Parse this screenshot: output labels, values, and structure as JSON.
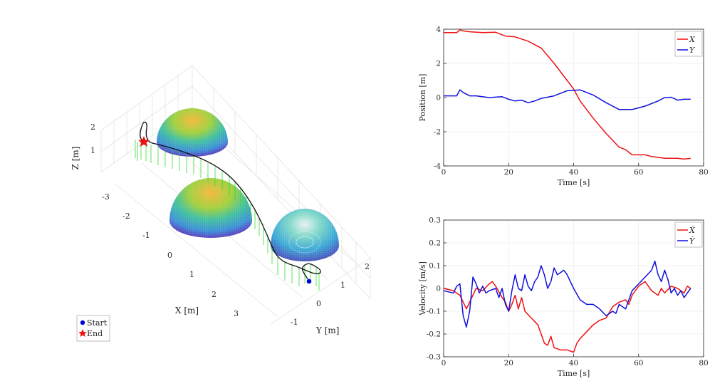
{
  "figure": {
    "legend3d": {
      "items": [
        "Start",
        "End"
      ]
    }
  },
  "chart_data": [
    {
      "type": "3d-scatter-surface",
      "xlabel": "X [m]",
      "ylabel": "Y [m]",
      "zlabel": "Z [m]",
      "x_ticks": [
        "-3",
        "-2",
        "-1",
        "0",
        "1",
        "2",
        "3"
      ],
      "y_ticks": [
        "-1",
        "0",
        "1",
        "2"
      ],
      "z_ticks": [
        "1",
        "2"
      ],
      "legend": [
        "Start",
        "End"
      ],
      "legend_position": "bottom-left",
      "obstacles": [
        {
          "shape": "hemisphere",
          "center_x": -1.0,
          "center_y": 1.5
        },
        {
          "shape": "hemisphere",
          "center_x": 0.0,
          "center_y": -0.5
        },
        {
          "shape": "hemisphere",
          "center_x": 2.0,
          "center_y": 1.0
        }
      ],
      "start": {
        "x": 3.8,
        "y": 0.1,
        "z": 0.6
      },
      "end": {
        "x": -3.5,
        "y": -0.1,
        "z": 1.2
      }
    },
    {
      "type": "line",
      "xlabel": "Time [s]",
      "ylabel": "Position [m]",
      "xlim": [
        0,
        80
      ],
      "ylim": [
        -4,
        4
      ],
      "x_ticks": [
        0,
        20,
        40,
        60,
        80
      ],
      "y_ticks": [
        -4,
        -2,
        0,
        2,
        4
      ],
      "legend_position": "top-right",
      "series": [
        {
          "name": "X",
          "color": "#ee1111",
          "points": [
            [
              0,
              3.8
            ],
            [
              4,
              3.8
            ],
            [
              5,
              3.97
            ],
            [
              6,
              3.9
            ],
            [
              8,
              3.85
            ],
            [
              12,
              3.8
            ],
            [
              16,
              3.82
            ],
            [
              19,
              3.6
            ],
            [
              22,
              3.55
            ],
            [
              26,
              3.3
            ],
            [
              30,
              2.9
            ],
            [
              34,
              2.0
            ],
            [
              38,
              1.0
            ],
            [
              40,
              0.5
            ],
            [
              42,
              -0.2
            ],
            [
              46,
              -1.2
            ],
            [
              50,
              -2.1
            ],
            [
              54,
              -2.9
            ],
            [
              56,
              -3.05
            ],
            [
              58,
              -3.35
            ],
            [
              62,
              -3.35
            ],
            [
              64,
              -3.45
            ],
            [
              68,
              -3.55
            ],
            [
              72,
              -3.55
            ],
            [
              74,
              -3.6
            ],
            [
              76,
              -3.55
            ]
          ]
        },
        {
          "name": "Y",
          "color": "#1111dd",
          "points": [
            [
              0,
              0.1
            ],
            [
              4,
              0.1
            ],
            [
              5,
              0.45
            ],
            [
              6,
              0.3
            ],
            [
              8,
              0.1
            ],
            [
              10,
              0.1
            ],
            [
              14,
              0.0
            ],
            [
              18,
              0.05
            ],
            [
              20,
              -0.1
            ],
            [
              22,
              -0.2
            ],
            [
              24,
              -0.15
            ],
            [
              26,
              -0.3
            ],
            [
              28,
              -0.2
            ],
            [
              30,
              -0.05
            ],
            [
              34,
              0.1
            ],
            [
              38,
              0.4
            ],
            [
              42,
              0.45
            ],
            [
              46,
              0.15
            ],
            [
              50,
              -0.3
            ],
            [
              54,
              -0.7
            ],
            [
              58,
              -0.7
            ],
            [
              62,
              -0.5
            ],
            [
              66,
              -0.2
            ],
            [
              68,
              0.0
            ],
            [
              70,
              0.02
            ],
            [
              72,
              -0.15
            ],
            [
              74,
              -0.1
            ],
            [
              76,
              -0.1
            ]
          ]
        }
      ]
    },
    {
      "type": "line",
      "xlabel": "Time [s]",
      "ylabel": "Velocity [m/s]",
      "xlim": [
        0,
        80
      ],
      "ylim": [
        -0.3,
        0.3
      ],
      "x_ticks": [
        0,
        20,
        40,
        60,
        80
      ],
      "y_ticks": [
        -0.3,
        -0.2,
        -0.1,
        0,
        0.1,
        0.2,
        0.3
      ],
      "legend_position": "top-right",
      "series": [
        {
          "name": "Ẋ",
          "color": "#ee1111",
          "points": [
            [
              0,
              0.0
            ],
            [
              3,
              -0.01
            ],
            [
              5,
              -0.03
            ],
            [
              6,
              -0.06
            ],
            [
              7,
              -0.09
            ],
            [
              8,
              -0.06
            ],
            [
              10,
              0.0
            ],
            [
              12,
              -0.01
            ],
            [
              14,
              0.02
            ],
            [
              15,
              0.03
            ],
            [
              16,
              0.01
            ],
            [
              18,
              -0.04
            ],
            [
              19,
              -0.06
            ],
            [
              20,
              -0.1
            ],
            [
              21,
              -0.07
            ],
            [
              22,
              -0.03
            ],
            [
              23,
              -0.09
            ],
            [
              24,
              -0.04
            ],
            [
              25,
              -0.1
            ],
            [
              27,
              -0.13
            ],
            [
              29,
              -0.16
            ],
            [
              30,
              -0.2
            ],
            [
              31,
              -0.24
            ],
            [
              32,
              -0.25
            ],
            [
              33,
              -0.21
            ],
            [
              34,
              -0.26
            ],
            [
              36,
              -0.27
            ],
            [
              38,
              -0.27
            ],
            [
              40,
              -0.28
            ],
            [
              41,
              -0.24
            ],
            [
              42,
              -0.22
            ],
            [
              44,
              -0.19
            ],
            [
              46,
              -0.16
            ],
            [
              48,
              -0.14
            ],
            [
              50,
              -0.13
            ],
            [
              52,
              -0.08
            ],
            [
              54,
              -0.06
            ],
            [
              56,
              -0.05
            ],
            [
              57,
              -0.07
            ],
            [
              58,
              -0.03
            ],
            [
              60,
              0.01
            ],
            [
              62,
              0.03
            ],
            [
              64,
              -0.01
            ],
            [
              66,
              -0.03
            ],
            [
              67,
              0.0
            ],
            [
              68,
              -0.02
            ],
            [
              70,
              0.01
            ],
            [
              72,
              0.0
            ],
            [
              74,
              -0.02
            ],
            [
              75,
              0.01
            ],
            [
              76,
              0.0
            ]
          ]
        },
        {
          "name": "Ẏ",
          "color": "#1111dd",
          "points": [
            [
              0,
              -0.01
            ],
            [
              3,
              -0.02
            ],
            [
              4,
              0.01
            ],
            [
              5,
              0.02
            ],
            [
              6,
              -0.12
            ],
            [
              7,
              -0.17
            ],
            [
              8,
              -0.1
            ],
            [
              9,
              0.05
            ],
            [
              10,
              0.02
            ],
            [
              11,
              -0.02
            ],
            [
              12,
              0.01
            ],
            [
              13,
              -0.02
            ],
            [
              14,
              -0.01
            ],
            [
              16,
              0.0
            ],
            [
              17,
              -0.04
            ],
            [
              18,
              0.0
            ],
            [
              19,
              -0.07
            ],
            [
              20,
              -0.1
            ],
            [
              21,
              -0.01
            ],
            [
              22,
              0.06
            ],
            [
              23,
              0.0
            ],
            [
              24,
              -0.01
            ],
            [
              25,
              0.06
            ],
            [
              26,
              0.01
            ],
            [
              27,
              -0.01
            ],
            [
              28,
              0.03
            ],
            [
              29,
              0.05
            ],
            [
              30,
              0.1
            ],
            [
              31,
              0.06
            ],
            [
              32,
              0.0
            ],
            [
              33,
              0.03
            ],
            [
              34,
              0.09
            ],
            [
              35,
              0.06
            ],
            [
              36,
              0.07
            ],
            [
              37,
              0.08
            ],
            [
              38,
              0.06
            ],
            [
              40,
              0.0
            ],
            [
              42,
              -0.05
            ],
            [
              44,
              -0.07
            ],
            [
              46,
              -0.07
            ],
            [
              48,
              -0.09
            ],
            [
              50,
              -0.12
            ],
            [
              52,
              -0.1
            ],
            [
              53,
              -0.11
            ],
            [
              54,
              -0.07
            ],
            [
              56,
              -0.09
            ],
            [
              58,
              -0.01
            ],
            [
              60,
              0.02
            ],
            [
              62,
              0.05
            ],
            [
              64,
              0.08
            ],
            [
              65,
              0.12
            ],
            [
              66,
              0.06
            ],
            [
              67,
              0.03
            ],
            [
              68,
              0.08
            ],
            [
              69,
              0.04
            ],
            [
              70,
              -0.02
            ],
            [
              71,
              0.0
            ],
            [
              72,
              -0.03
            ],
            [
              73,
              -0.01
            ],
            [
              74,
              -0.04
            ],
            [
              75,
              -0.02
            ],
            [
              76,
              0.0
            ]
          ]
        }
      ]
    }
  ]
}
